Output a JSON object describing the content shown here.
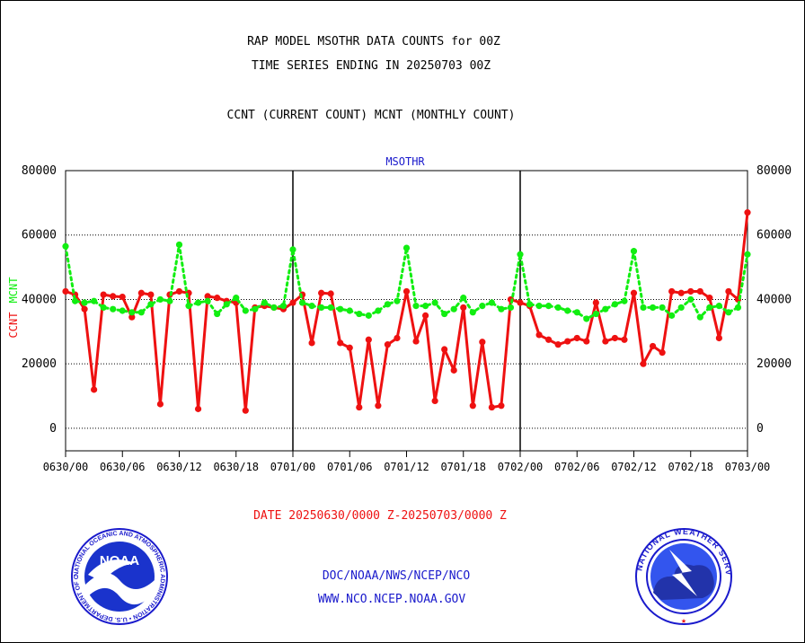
{
  "header": {
    "title_line1": "RAP MODEL MSOTHR DATA COUNTS for 00Z",
    "title_line2": "TIME SERIES ENDING IN 20250703 00Z",
    "subtitle": "CCNT (CURRENT COUNT) MCNT (MONTHLY COUNT)"
  },
  "footer": {
    "date_range": "DATE 20250630/0000 Z-20250703/0000 Z",
    "org": "DOC/NOAA/NWS/NCEP/NCO",
    "url": "WWW.NCO.NCEP.NOAA.GOV"
  },
  "logos": {
    "left_label": "NOAA",
    "left_ring_text": "NATIONAL OCEANIC AND ATMOSPHERIC ADMINISTRATION • U.S. DEPARTMENT OF COMMERCE •",
    "right_ring_text": "NATIONAL WEATHER SERVICE"
  },
  "colors": {
    "ccnt": "#ee1111",
    "mcnt": "#11ee11",
    "text_blue": "#1a1acc",
    "text_red": "#ee1111",
    "grid": "#000000"
  },
  "chart_data": {
    "type": "line",
    "title": "MSOTHR",
    "ylabel_left": [
      "CCNT",
      "MCNT"
    ],
    "ylim": [
      -7000,
      80000
    ],
    "yticks": [
      0,
      20000,
      40000,
      60000,
      80000
    ],
    "ytick_labels": [
      "0",
      "20000",
      "40000",
      "60000",
      "80000"
    ],
    "xlim": [
      0,
      72
    ],
    "xticks": [
      0,
      6,
      12,
      18,
      24,
      30,
      36,
      42,
      48,
      54,
      60,
      66,
      72
    ],
    "xtick_labels": [
      "0630/00",
      "0630/06",
      "0630/12",
      "0630/18",
      "0701/00",
      "0701/06",
      "0701/12",
      "0701/18",
      "0702/00",
      "0702/06",
      "0702/12",
      "0702/18",
      "0703/00"
    ],
    "x_unit": "hours since 0630/00",
    "day_dividers": [
      24,
      48
    ],
    "grid": true,
    "series": [
      {
        "name": "CCNT",
        "color": "#ee1111",
        "style": "solid",
        "values": [
          42500,
          41500,
          37000,
          12000,
          41500,
          41000,
          40800,
          34500,
          42000,
          41500,
          7500,
          41500,
          42500,
          42000,
          6000,
          41000,
          40500,
          39500,
          39000,
          5500,
          37500,
          38000,
          37500,
          37000,
          39000,
          41500,
          26500,
          42000,
          41800,
          26500,
          25000,
          6500,
          27500,
          7000,
          26000,
          28000,
          42500,
          27000,
          35000,
          8500,
          24500,
          18000,
          37500,
          7000,
          26800,
          6500,
          7000,
          40000,
          39000,
          38000,
          29000,
          27500,
          26000,
          27000,
          28000,
          27000,
          39000,
          27000,
          28000,
          27500,
          42000,
          20000,
          25500,
          23500,
          42500,
          42000,
          42500,
          42500,
          40500,
          28000,
          42500,
          40000,
          67000
        ]
      },
      {
        "name": "MCNT",
        "color": "#11ee11",
        "style": "dotted",
        "values": [
          56500,
          39500,
          39000,
          39500,
          37500,
          37000,
          36500,
          36000,
          36000,
          38500,
          40000,
          39500,
          57000,
          38000,
          39000,
          39500,
          35500,
          38500,
          40500,
          36500,
          37000,
          39000,
          37500,
          38000,
          55500,
          39000,
          38000,
          37500,
          37500,
          37000,
          36500,
          35500,
          35000,
          36500,
          38500,
          39500,
          56000,
          38000,
          38000,
          39000,
          35500,
          37000,
          40500,
          36000,
          38000,
          39000,
          37000,
          37500,
          54000,
          38500,
          38000,
          38000,
          37500,
          36500,
          36000,
          34000,
          35500,
          37000,
          38500,
          39500,
          55000,
          37500,
          37500,
          37500,
          35000,
          37500,
          40000,
          34500,
          37500,
          38000,
          36000,
          37500,
          54000
        ]
      }
    ]
  }
}
